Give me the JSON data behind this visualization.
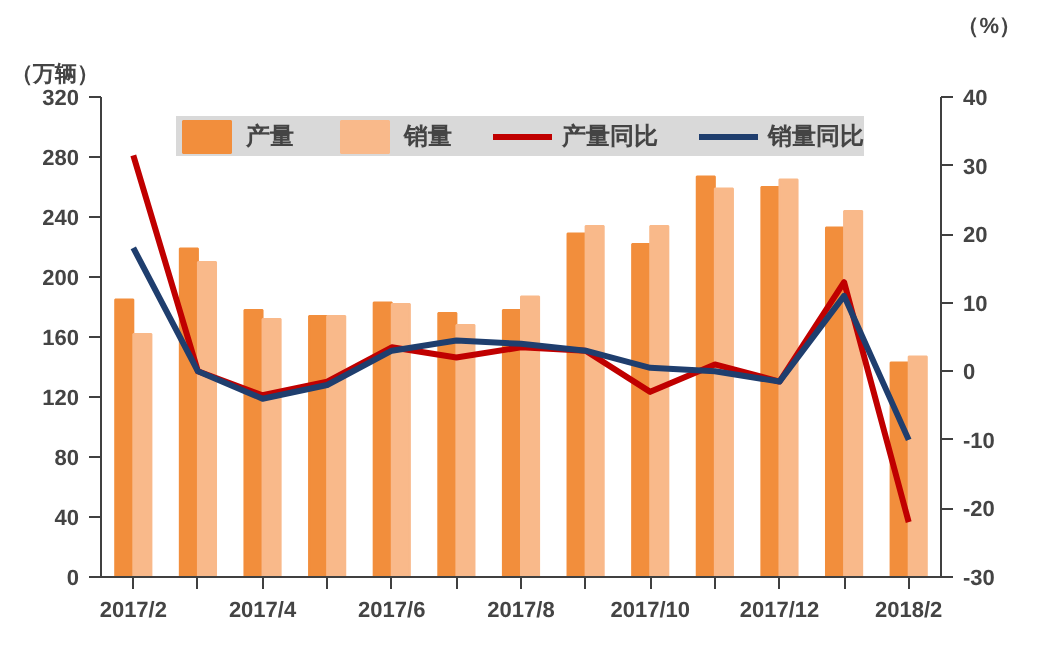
{
  "chart_data": {
    "type": "bar",
    "ylabel": "（万辆）",
    "y2label": "（%）",
    "categories": [
      "2017/2",
      null,
      "2017/4",
      null,
      "2017/6",
      null,
      "2017/8",
      null,
      "2017/10",
      null,
      "2017/12",
      null,
      "2018/2"
    ],
    "series": [
      {
        "name": "产量",
        "color": "#f28e3c",
        "values": [
          185,
          219,
          178,
          174,
          183,
          176,
          178,
          229,
          222,
          267,
          260,
          233,
          143
        ]
      },
      {
        "name": "销量",
        "color": "#f9b98a",
        "values": [
          162,
          210,
          172,
          174,
          182,
          168,
          187,
          234,
          234,
          259,
          265,
          244,
          147
        ]
      },
      {
        "name": "产量同比",
        "type": "line",
        "axis": "y2",
        "color": "#c00000",
        "values": [
          31.5,
          0,
          -3.5,
          -1.5,
          3.5,
          2,
          3.5,
          3,
          -3,
          1,
          -1.5,
          13,
          -22
        ]
      },
      {
        "name": "销量同比",
        "type": "line",
        "axis": "y2",
        "color": "#1f3e6e",
        "values": [
          18,
          0,
          -4,
          -2,
          3,
          4.5,
          4,
          3,
          0.5,
          0,
          -1.5,
          11,
          -10
        ]
      }
    ],
    "ylim": [
      0,
      320
    ],
    "yticks": [
      0,
      40,
      80,
      120,
      160,
      200,
      240,
      280,
      320
    ],
    "y2lim": [
      -30,
      40
    ],
    "y2ticks": [
      -30,
      -20,
      -10,
      0,
      10,
      20,
      30,
      40
    ],
    "grid": false,
    "legend": "top",
    "marker": "none",
    "line_style": "solid"
  }
}
